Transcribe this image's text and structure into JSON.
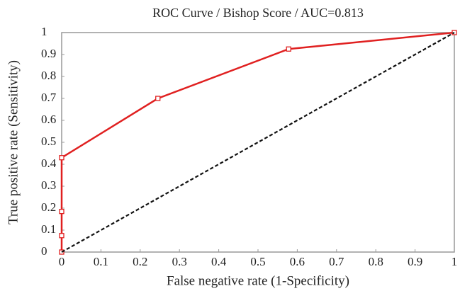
{
  "chart_data": {
    "type": "line",
    "title": "ROC Curve / Bishop Score / AUC=0.813",
    "x_label": "False negative rate (1-Specificity)",
    "y_label": "True positive rate (Sensitivity)",
    "series": [
      {
        "x": [
          0,
          0,
          0,
          0,
          0.245,
          0.578,
          1
        ],
        "values": [
          0,
          0.075,
          0.185,
          0.43,
          0.7,
          0.925,
          1
        ],
        "color": "#e02020",
        "line_style": "solid",
        "marker": "square"
      },
      {
        "x": [
          0,
          1
        ],
        "values": [
          0,
          1
        ],
        "color": "#111111",
        "line_style": "dashed",
        "marker": "none"
      }
    ],
    "xlim": [
      0,
      1
    ],
    "xticks": [
      0,
      0.1,
      0.2,
      0.3,
      0.4,
      0.5,
      0.6,
      0.7,
      0.8,
      0.9,
      1
    ],
    "ylim": [
      0,
      1
    ],
    "yticks": [
      0,
      0.1,
      0.2,
      0.3,
      0.4,
      0.5,
      0.6,
      0.7,
      0.8,
      0.9,
      1
    ],
    "grid": false
  }
}
